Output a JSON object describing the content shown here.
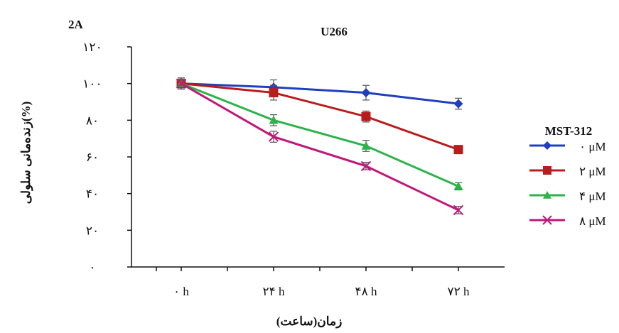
{
  "panel_label": "2A",
  "chart_data": {
    "type": "line",
    "title": "U266",
    "xlabel": "زمان(ساعت)",
    "ylabel": "زنده‌مانی سلولی(%)",
    "categories": [
      "۰ h",
      "۲۴ h",
      "۴۸ h",
      "۷۲ h"
    ],
    "yticks": [
      "۰",
      "۲۰",
      "۴۰",
      "۶۰",
      "۸۰",
      "۱۰۰",
      "۱۲۰"
    ],
    "ylim": [
      0,
      120
    ],
    "legend_title": "MST-312",
    "legend_position": "right",
    "series": [
      {
        "name": "۰ μM",
        "values": [
          100,
          98,
          95,
          89
        ],
        "errors": [
          3,
          4,
          4,
          3
        ],
        "color": "#1f3fbf",
        "marker": "diamond"
      },
      {
        "name": "۲ μM",
        "values": [
          100,
          95,
          82,
          64
        ],
        "errors": [
          3,
          4,
          3,
          2
        ],
        "color": "#b81c1c",
        "marker": "square"
      },
      {
        "name": "۴ μM",
        "values": [
          100,
          80,
          66,
          44
        ],
        "errors": [
          3,
          3,
          3,
          2
        ],
        "color": "#2db34a",
        "marker": "triangle"
      },
      {
        "name": "۸ μM",
        "values": [
          100,
          71,
          55,
          31
        ],
        "errors": [
          3,
          3,
          2,
          2
        ],
        "color": "#c0187a",
        "marker": "x"
      }
    ]
  }
}
